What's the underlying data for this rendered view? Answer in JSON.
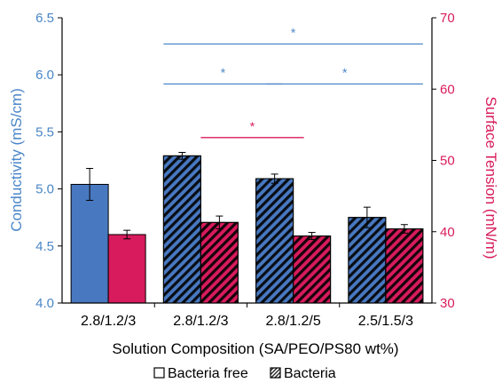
{
  "colors": {
    "conductivity": "#4878c0",
    "surface_tension": "#d81b5c",
    "left_axis": "#4a86c8",
    "right_axis": "#d81b5c",
    "error_bar": "#000000"
  },
  "chart_data": {
    "type": "bar",
    "xlabel": "Solution Composition (SA/PEO/PS80 wt%)",
    "ylabel": "Conductivity (mS/cm)",
    "y2label": "Surface Tension (mN/m)",
    "categories": [
      "2.8/1.2/3",
      "2.8/1.2/3",
      "2.8/1.2/5",
      "2.5/1.5/3"
    ],
    "ylim": [
      4.0,
      6.5
    ],
    "y2lim": [
      30,
      70
    ],
    "yticks": [
      "4.0",
      "4.5",
      "5.0",
      "5.5",
      "6.0",
      "6.5"
    ],
    "y2ticks": [
      "30",
      "40",
      "50",
      "60",
      "70"
    ],
    "hatched": [
      false,
      true,
      true,
      true
    ],
    "series": [
      {
        "axis": "left",
        "color": "#4878c0",
        "values": [
          5.04,
          5.29,
          5.09,
          4.75
        ],
        "errors": [
          0.14,
          0.03,
          0.04,
          0.09
        ]
      },
      {
        "axis": "right",
        "color": "#d81b5c",
        "values": [
          39.6,
          41.3,
          39.4,
          40.4
        ],
        "errors": [
          0.6,
          0.9,
          0.5,
          0.6
        ]
      }
    ],
    "significance": [
      {
        "from": 1,
        "to": 3,
        "y": 6.27,
        "label": "*",
        "color": "#4a86c8"
      },
      {
        "from": 1,
        "to": 2,
        "y": 5.92,
        "label": "*",
        "color": "#4a86c8"
      },
      {
        "from": 2,
        "to": 3,
        "y": 5.92,
        "label": "*",
        "color": "#4a86c8"
      },
      {
        "from": 1,
        "to": 2,
        "y": 5.45,
        "label": "*",
        "color": "#d81b5c"
      }
    ],
    "legend": {
      "placement": "bottom",
      "items": [
        {
          "label": "Bacteria free",
          "hatched": false
        },
        {
          "label": "Bacteria",
          "hatched": true
        }
      ]
    },
    "grid": false
  }
}
